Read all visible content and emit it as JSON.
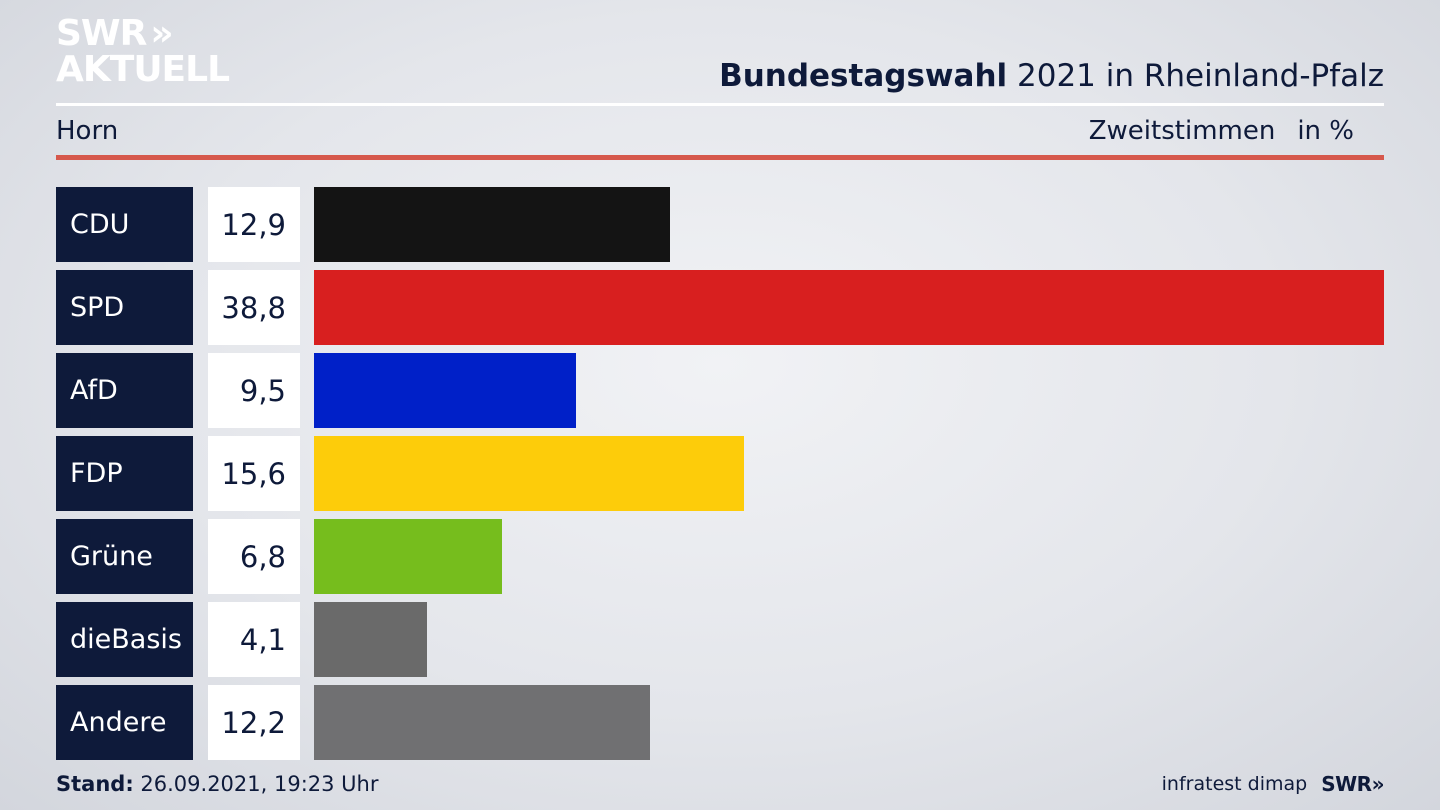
{
  "logo": {
    "line1": "SWR",
    "line2": "AKTUELL",
    "arrows": "»"
  },
  "header": {
    "title_strong": "Bundestagswahl",
    "title_rest": " 2021 in Rheinland-Pfalz",
    "region": "Horn",
    "measure": "Zweitstimmen",
    "unit": "in %"
  },
  "colors": {
    "navy": "#0e1a3a",
    "accent_red_rule": "#d6584c"
  },
  "chart_data": {
    "type": "bar",
    "orientation": "horizontal",
    "xlim": [
      0,
      38.8
    ],
    "categories": [
      "CDU",
      "SPD",
      "AfD",
      "FDP",
      "Grüne",
      "dieBasis",
      "Andere"
    ],
    "values": [
      12.9,
      38.8,
      9.5,
      15.6,
      6.8,
      4.1,
      12.2
    ],
    "value_labels": [
      "12,9",
      "38,8",
      "9,5",
      "15,6",
      "6,8",
      "4,1",
      "12,2"
    ],
    "bar_colors": [
      "#141414",
      "#d81f1f",
      "#0020c8",
      "#fdcc0a",
      "#76bd1d",
      "#6a6a6a",
      "#707072"
    ]
  },
  "footer": {
    "stand_label": "Stand:",
    "stand_value": " 26.09.2021, 19:23 Uhr",
    "source": "infratest dimap",
    "brand": "SWR»"
  }
}
